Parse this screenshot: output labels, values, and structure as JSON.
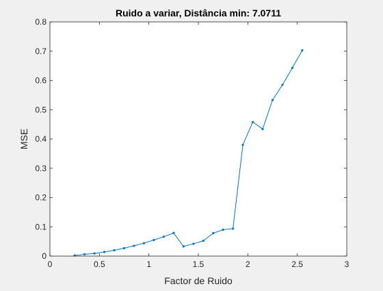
{
  "chart_data": {
    "type": "line",
    "title": "Ruido a variar, Distância min: 7.0711",
    "xlabel": "Factor de Ruido",
    "ylabel": "MSE",
    "xlim": [
      0,
      3
    ],
    "ylim": [
      0,
      0.8
    ],
    "xticks": [
      0,
      0.5,
      1,
      1.5,
      2,
      2.5,
      3
    ],
    "xtick_labels": [
      "0",
      "0.5",
      "1",
      "1.5",
      "2",
      "2.5",
      "3"
    ],
    "yticks": [
      0,
      0.1,
      0.2,
      0.3,
      0.4,
      0.5,
      0.6,
      0.7,
      0.8
    ],
    "ytick_labels": [
      "0",
      "0.1",
      "0.2",
      "0.3",
      "0.4",
      "0.5",
      "0.6",
      "0.7",
      "0.8"
    ],
    "grid": false,
    "legend": "none",
    "series": [
      {
        "color": "#0072bd",
        "marker": "point",
        "x": [
          0.25,
          0.35,
          0.45,
          0.55,
          0.65,
          0.75,
          0.85,
          0.95,
          1.05,
          1.15,
          1.25,
          1.35,
          1.45,
          1.55,
          1.65,
          1.75,
          1.85,
          1.95,
          2.05,
          2.15,
          2.25,
          2.35,
          2.45,
          2.55
        ],
        "y": [
          0.002,
          0.006,
          0.009,
          0.014,
          0.02,
          0.027,
          0.035,
          0.044,
          0.055,
          0.066,
          0.079,
          0.033,
          0.042,
          0.052,
          0.078,
          0.09,
          0.094,
          0.38,
          0.458,
          0.434,
          0.533,
          0.585,
          0.643,
          0.703
        ]
      }
    ]
  }
}
